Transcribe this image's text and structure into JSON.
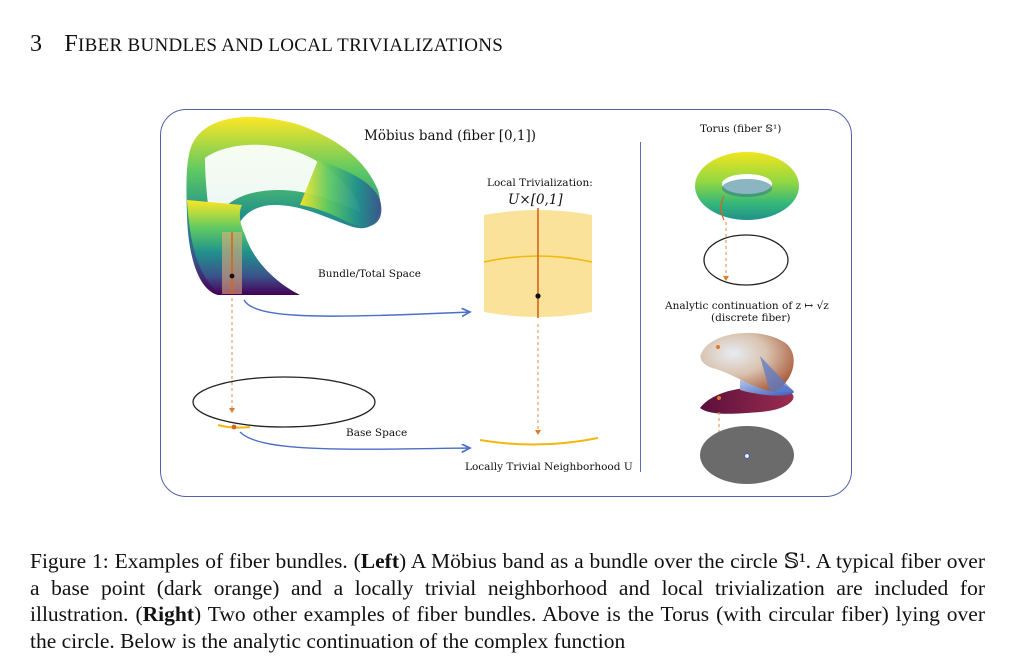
{
  "heading": {
    "number": "3",
    "title_initial": "F",
    "title_rest": "IBER BUNDLES AND LOCAL TRIVIALIZATIONS"
  },
  "figure": {
    "mobius_title": "Möbius band (fiber [0,1])",
    "bundle_label": "Bundle/Total Space",
    "local_triv_label": "Local Trivialization:",
    "local_triv_math": "U×[0,1]",
    "base_space_label": "Base Space",
    "locally_trivial_label": "Locally Trivial Neighborhood U",
    "torus_title": "Torus (fiber 𝕊¹)",
    "analytic_label": "Analytic continuation of z ↦ √z",
    "discrete_fiber_label": "(discrete fiber)"
  },
  "caption": {
    "prefix": "Figure 1: Examples of fiber bundles. (",
    "left_word": "Left",
    "part1": ") A Möbius band as a bundle over the circle 𝕊¹. A typical fiber over a base point (dark orange) and a locally trivial neighborhood and local trivialization are included for illustration. (",
    "right_word": "Right",
    "part2": ") Two other examples of fiber bundles. Above is the Torus (with circular fiber) lying over the circle. Below is the analytic continuation of the complex function"
  },
  "colors": {
    "frame": "#5560a8",
    "arrow_blue": "#4a6fc4",
    "fiber_orange": "#d5661a",
    "neighborhood_yellow": "#f1b810",
    "trivialization_fill": "#fbe29a",
    "viridis_low": "#440154",
    "viridis_high": "#fde725"
  }
}
